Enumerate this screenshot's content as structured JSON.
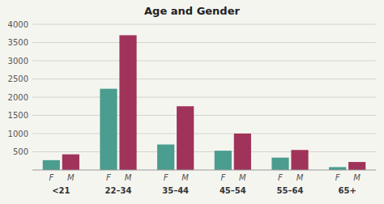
{
  "chart_data": {
    "type": "bar",
    "title": "Age and Gender",
    "categories": [
      "<21",
      "22–34",
      "35–44",
      "45–54",
      "55–64",
      "65+"
    ],
    "series": [
      {
        "name": "F",
        "color": "#4a9d8f",
        "values": [
          270,
          2230,
          700,
          530,
          340,
          80
        ]
      },
      {
        "name": "M",
        "color": "#a0335a",
        "values": [
          430,
          3700,
          1750,
          1000,
          550,
          220
        ]
      }
    ],
    "ylim": [
      0,
      4000
    ],
    "yticks": [
      500,
      1000,
      1500,
      2000,
      2500,
      3000,
      3500,
      4000
    ],
    "grid": true
  }
}
